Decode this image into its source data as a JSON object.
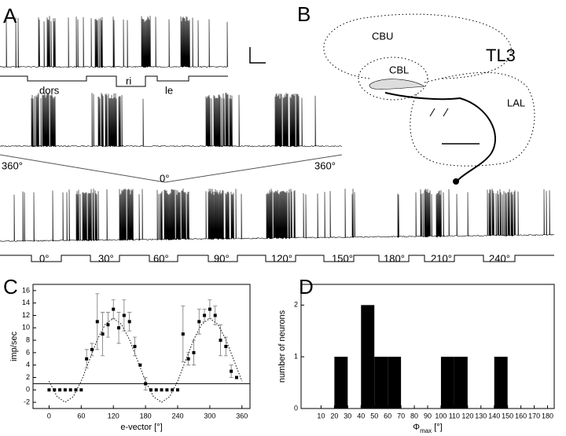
{
  "panel_labels": [
    "A",
    "B",
    "C",
    "D"
  ],
  "panel_a": {
    "stimulus_1": [
      "dors",
      "ri",
      "le"
    ],
    "sweep": [
      "360°",
      "0°",
      "360°"
    ],
    "stimulus_2": [
      "0°",
      "30°",
      "60°",
      "90°",
      "120°",
      "150°",
      "180°",
      "210°",
      "240°"
    ]
  },
  "panel_b": {
    "labels": [
      "CBU",
      "TL3",
      "CBL",
      "LAL"
    ]
  },
  "chart_data": [
    {
      "type": "scatter",
      "ylabel": "imp/sec",
      "xlabel": "e-vector [°]",
      "x": [
        0,
        10,
        20,
        30,
        40,
        50,
        60,
        70,
        80,
        90,
        100,
        110,
        120,
        130,
        140,
        150,
        160,
        170,
        180,
        190,
        200,
        210,
        220,
        230,
        240,
        250,
        260,
        270,
        280,
        290,
        300,
        310,
        320,
        330,
        340,
        350
      ],
      "values": [
        0,
        0,
        0,
        0,
        0,
        0,
        0,
        5,
        6.5,
        11,
        9,
        10.5,
        13,
        10,
        12,
        11,
        7,
        4,
        1,
        0,
        0,
        0,
        0,
        0,
        0,
        9,
        5,
        6,
        11,
        12,
        13,
        12,
        8,
        7,
        3,
        2
      ],
      "errors": [
        null,
        null,
        null,
        null,
        null,
        null,
        null,
        1.5,
        1,
        4.5,
        3.5,
        2,
        1.5,
        2.5,
        2.5,
        1.5,
        1.5,
        null,
        1,
        null,
        null,
        null,
        null,
        null,
        null,
        4.5,
        1,
        2,
        2,
        1,
        1.5,
        1.5,
        2.5,
        1.5,
        1,
        null
      ],
      "fit": {
        "x": [
          0,
          15,
          30,
          45,
          60,
          75,
          90,
          105,
          120,
          135,
          150,
          165,
          180,
          195,
          210,
          225,
          240,
          255,
          270,
          285,
          300,
          315,
          330,
          345,
          360
        ],
        "values": [
          1.4,
          -1.1,
          -2,
          -1.1,
          1.4,
          4.75,
          8.1,
          10.6,
          11.5,
          10.6,
          8.1,
          4.75,
          1.4,
          -1.1,
          -2,
          -1.1,
          1.4,
          4.75,
          8.1,
          10.6,
          11.5,
          10.6,
          8.1,
          4.75,
          1.4
        ]
      },
      "hline": 1,
      "xlim": [
        -30,
        375
      ],
      "ylim": [
        -3,
        17
      ],
      "xticks": [
        0,
        60,
        120,
        180,
        240,
        300,
        360
      ],
      "yticks": [
        -2,
        0,
        2,
        4,
        6,
        8,
        10,
        12,
        14,
        16
      ]
    },
    {
      "type": "histogram",
      "ylabel": "number of neurons",
      "xlabel_symbol": "Φ",
      "xlabel_subscript": "max",
      "xlabel_unit": "[°]",
      "bins": [
        0,
        10,
        20,
        30,
        40,
        50,
        60,
        70,
        80,
        90,
        100,
        110,
        120,
        130,
        140,
        150,
        160,
        170,
        180
      ],
      "counts": [
        0,
        0,
        1,
        0,
        2,
        1,
        1,
        0,
        0,
        0,
        1,
        1,
        0,
        0,
        1,
        0,
        0,
        0
      ],
      "color": "#000000",
      "xlim": [
        -5,
        185
      ],
      "ylim": [
        0,
        2.4
      ],
      "xticks": [
        10,
        20,
        30,
        40,
        50,
        60,
        70,
        80,
        90,
        100,
        110,
        120,
        130,
        140,
        150,
        160,
        170,
        180
      ],
      "yticks": [
        0,
        1,
        2
      ]
    }
  ]
}
